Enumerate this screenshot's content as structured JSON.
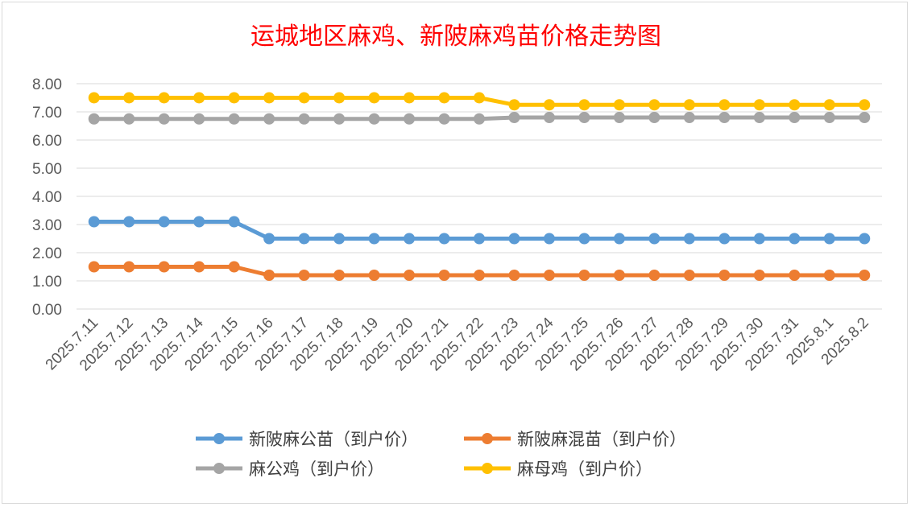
{
  "chart_data": {
    "type": "line",
    "title": "运城地区麻鸡、新陂麻鸡苗价格走势图",
    "xlabel": "",
    "ylabel": "",
    "ylim": [
      0,
      8
    ],
    "ytick_labels": [
      "0.00",
      "1.00",
      "2.00",
      "3.00",
      "4.00",
      "5.00",
      "6.00",
      "7.00",
      "8.00"
    ],
    "categories": [
      "2025.7.11",
      "2025.7.12",
      "2025.7.13",
      "2025.7.14",
      "2025.7.15",
      "2025.7.16",
      "2025.7.17",
      "2025.7.18",
      "2025.7.19",
      "2025.7.20",
      "2025.7.21",
      "2025.7.22",
      "2025.7.23",
      "2025.7.24",
      "2025.7.25",
      "2025.7.26",
      "2025.7.27",
      "2025.7.28",
      "2025.7.29",
      "2025.7.30",
      "2025.7.31",
      "2025.8.1",
      "2025.8.2"
    ],
    "grid": true,
    "legend_position": "bottom",
    "series": [
      {
        "name": "新陂麻公苗（到户价）",
        "color": "#5b9bd5",
        "values": [
          3.1,
          3.1,
          3.1,
          3.1,
          3.1,
          2.5,
          2.5,
          2.5,
          2.5,
          2.5,
          2.5,
          2.5,
          2.5,
          2.5,
          2.5,
          2.5,
          2.5,
          2.5,
          2.5,
          2.5,
          2.5,
          2.5,
          2.5
        ]
      },
      {
        "name": "新陂麻混苗（到户价）",
        "color": "#ed7d31",
        "values": [
          1.5,
          1.5,
          1.5,
          1.5,
          1.5,
          1.2,
          1.2,
          1.2,
          1.2,
          1.2,
          1.2,
          1.2,
          1.2,
          1.2,
          1.2,
          1.2,
          1.2,
          1.2,
          1.2,
          1.2,
          1.2,
          1.2,
          1.2
        ]
      },
      {
        "name": "麻公鸡（到户价）",
        "color": "#a5a5a5",
        "values": [
          6.75,
          6.75,
          6.75,
          6.75,
          6.75,
          6.75,
          6.75,
          6.75,
          6.75,
          6.75,
          6.75,
          6.75,
          6.8,
          6.8,
          6.8,
          6.8,
          6.8,
          6.8,
          6.8,
          6.8,
          6.8,
          6.8,
          6.8
        ]
      },
      {
        "name": "麻母鸡（到户价）",
        "color": "#ffc000",
        "values": [
          7.5,
          7.5,
          7.5,
          7.5,
          7.5,
          7.5,
          7.5,
          7.5,
          7.5,
          7.5,
          7.5,
          7.5,
          7.25,
          7.25,
          7.25,
          7.25,
          7.25,
          7.25,
          7.25,
          7.25,
          7.25,
          7.25,
          7.25
        ]
      }
    ]
  }
}
